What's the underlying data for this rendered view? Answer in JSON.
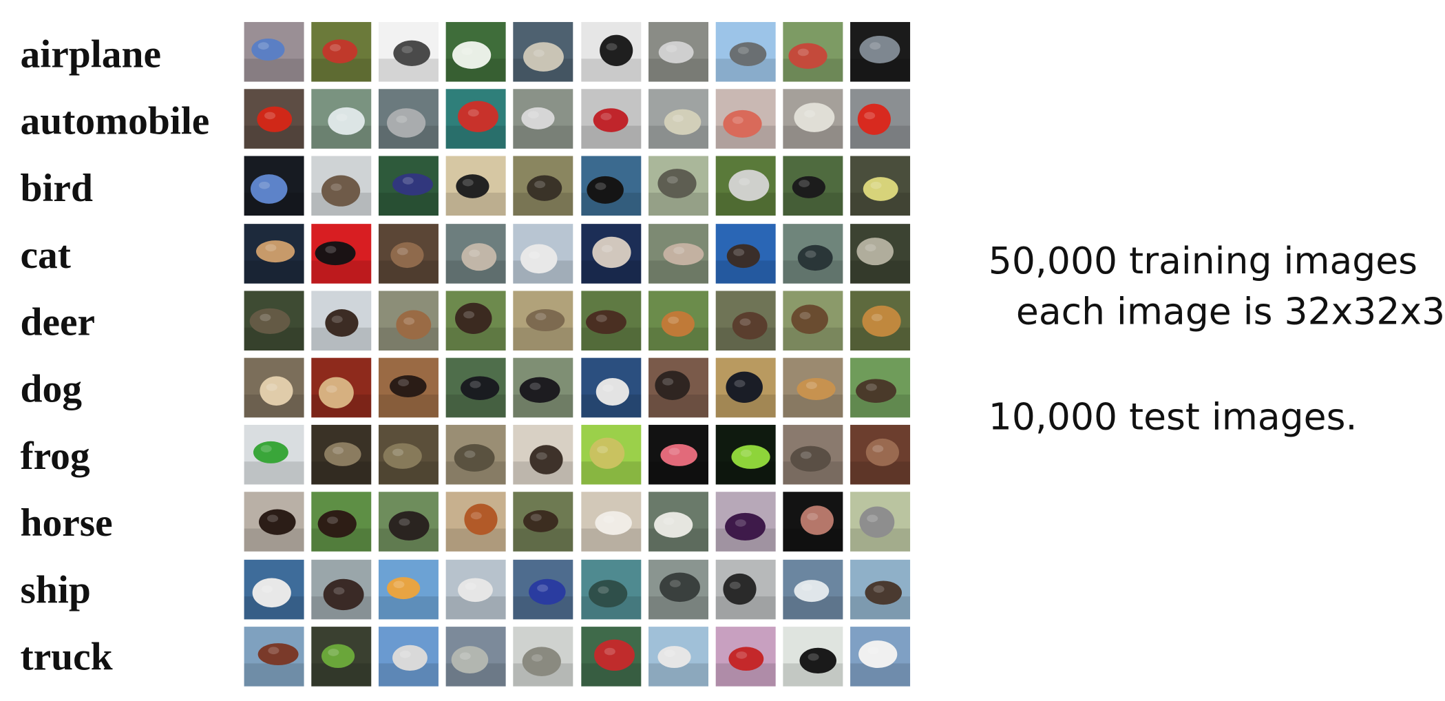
{
  "classes": [
    {
      "label": "airplane",
      "colors": [
        [
          "#9a8f95",
          "#5b7fc4"
        ],
        [
          "#6b7a3a",
          "#c0392b"
        ],
        [
          "#f2f2f2",
          "#4a4a4a"
        ],
        [
          "#3f6d3a",
          "#e9efe6"
        ],
        [
          "#4e6170",
          "#c9c4b5"
        ],
        [
          "#e6e6e6",
          "#1f1f1f"
        ],
        [
          "#8a8c86",
          "#cfcfcf"
        ],
        [
          "#9cc4e8",
          "#6a6f72"
        ],
        [
          "#7d9b64",
          "#c44a3b"
        ],
        [
          "#1b1b1b",
          "#7e8790"
        ]
      ]
    },
    {
      "label": "automobile",
      "colors": [
        [
          "#5d4d44",
          "#d02818"
        ],
        [
          "#7a9380",
          "#dce5e5"
        ],
        [
          "#6b7a7e",
          "#a9acae"
        ],
        [
          "#2f7f7a",
          "#c8322b"
        ],
        [
          "#8a9288",
          "#d6d6d6"
        ],
        [
          "#c4c4c4",
          "#c0252b"
        ],
        [
          "#9fa3a2",
          "#d2cfb9"
        ],
        [
          "#c9b8b3",
          "#d96a5a"
        ],
        [
          "#a5a09a",
          "#e0ded6"
        ],
        [
          "#8b8f92",
          "#d82a1f"
        ]
      ]
    },
    {
      "label": "bird",
      "colors": [
        [
          "#171b22",
          "#5d83c9"
        ],
        [
          "#cfd3d5",
          "#6f5b49"
        ],
        [
          "#2e5a3b",
          "#31377d"
        ],
        [
          "#d6c7a3",
          "#222222"
        ],
        [
          "#8a8660",
          "#3a3328"
        ],
        [
          "#3b6a8f",
          "#151515"
        ],
        [
          "#aab79a",
          "#5e5e52"
        ],
        [
          "#5a7a3a",
          "#cfd0cc"
        ],
        [
          "#4f6b3f",
          "#1c1c1c"
        ],
        [
          "#4a4e3c",
          "#d7d37a"
        ]
      ]
    },
    {
      "label": "cat",
      "colors": [
        [
          "#1d2a3c",
          "#c79a6a"
        ],
        [
          "#d81e22",
          "#1a1214"
        ],
        [
          "#5b4636",
          "#8f6a4c"
        ],
        [
          "#6d7e7e",
          "#c1b6a8"
        ],
        [
          "#b8c5d2",
          "#e8e8e8"
        ],
        [
          "#1c2e56",
          "#d1c7bd"
        ],
        [
          "#7d8a73",
          "#c3b1a1"
        ],
        [
          "#2a66b5",
          "#3a2e2a"
        ],
        [
          "#6f857b",
          "#2a3638"
        ],
        [
          "#3c4332",
          "#b0ad9c"
        ]
      ]
    },
    {
      "label": "deer",
      "colors": [
        [
          "#3e4b33",
          "#645a45"
        ],
        [
          "#cfd5da",
          "#3c2c24"
        ],
        [
          "#8c8e78",
          "#9a6b45"
        ],
        [
          "#6d8a4d",
          "#3b2a20"
        ],
        [
          "#b1a27a",
          "#7d6a50"
        ],
        [
          "#5f7a43",
          "#4a2f22"
        ],
        [
          "#6b8c4b",
          "#c07a38"
        ],
        [
          "#6f7456",
          "#5a3e2e"
        ],
        [
          "#8b9a6a",
          "#6a4c30"
        ],
        [
          "#5e6a3e",
          "#c0883e"
        ]
      ]
    },
    {
      "label": "dog",
      "colors": [
        [
          "#7b6e5a",
          "#e0ccaa"
        ],
        [
          "#8e2a1c",
          "#d6b080"
        ],
        [
          "#9a6a44",
          "#2a1c16"
        ],
        [
          "#4f6e4b",
          "#1a1c20"
        ],
        [
          "#7f8f74",
          "#1d1c20"
        ],
        [
          "#2b4f7f",
          "#e3e3e3"
        ],
        [
          "#7a5a4a",
          "#2f2521"
        ],
        [
          "#b99a60",
          "#1a1d26"
        ],
        [
          "#9b8a70",
          "#c7924f"
        ],
        [
          "#6f9c5a",
          "#4a3a2a"
        ]
      ]
    },
    {
      "label": "frog",
      "colors": [
        [
          "#d9dde0",
          "#3aa63a"
        ],
        [
          "#3a3226",
          "#8b7c60"
        ],
        [
          "#5b4f3a",
          "#877a5a"
        ],
        [
          "#9a8e74",
          "#5a5240"
        ],
        [
          "#d8d0c4",
          "#3e322a"
        ],
        [
          "#9bd04a",
          "#c9c260"
        ],
        [
          "#121212",
          "#e26a7a"
        ],
        [
          "#0f1a0f",
          "#8ed43a"
        ],
        [
          "#8a7a6e",
          "#5a4f45"
        ],
        [
          "#6c3e2e",
          "#9a6a50"
        ]
      ]
    },
    {
      "label": "horse",
      "colors": [
        [
          "#b9b0a6",
          "#2b1d17"
        ],
        [
          "#5e8f45",
          "#2d1d15"
        ],
        [
          "#6e8d5c",
          "#2a2420"
        ],
        [
          "#c7b08e",
          "#b25a28"
        ],
        [
          "#6e7a52",
          "#3c2d20"
        ],
        [
          "#d2c8b8",
          "#f0ece6"
        ],
        [
          "#6a7a6a",
          "#e6e6e0"
        ],
        [
          "#b7a8b8",
          "#3e1a4a"
        ],
        [
          "#131313",
          "#b5776a"
        ],
        [
          "#bac4a0",
          "#8e8e8e"
        ]
      ]
    },
    {
      "label": "ship",
      "colors": [
        [
          "#3e6c9a",
          "#e8e8e8"
        ],
        [
          "#9aa6aa",
          "#3a2a26"
        ],
        [
          "#6ca2d4",
          "#e8a442"
        ],
        [
          "#b7c2cc",
          "#e6e6e6"
        ],
        [
          "#4e6c8e",
          "#2a3ca0"
        ],
        [
          "#4f8a90",
          "#2f4f4a"
        ],
        [
          "#8a9590",
          "#3a403e"
        ],
        [
          "#b7b9ba",
          "#2a2a2a"
        ],
        [
          "#6b86a0",
          "#e0e6ea"
        ],
        [
          "#8fb0c8",
          "#4a3a30"
        ]
      ]
    },
    {
      "label": "truck",
      "colors": [
        [
          "#7fa1bf",
          "#7a3a2a"
        ],
        [
          "#3a4030",
          "#6aa63a"
        ],
        [
          "#6a9ad0",
          "#d9d9d9"
        ],
        [
          "#7c8a9a",
          "#b2b6b0"
        ],
        [
          "#cfd2cf",
          "#8a8a80"
        ],
        [
          "#3f6a4a",
          "#c02c2c"
        ],
        [
          "#a0c0d8",
          "#e6e6e6"
        ],
        [
          "#c8a0c0",
          "#c4282a"
        ],
        [
          "#dfe4df",
          "#1a1a1a"
        ],
        [
          "#7fa0c4",
          "#f0f0f0"
        ]
      ]
    }
  ],
  "info": {
    "training_line": "50,000 training images",
    "size_line": "each image is 32x32x3",
    "test_line": "10,000 test images."
  }
}
